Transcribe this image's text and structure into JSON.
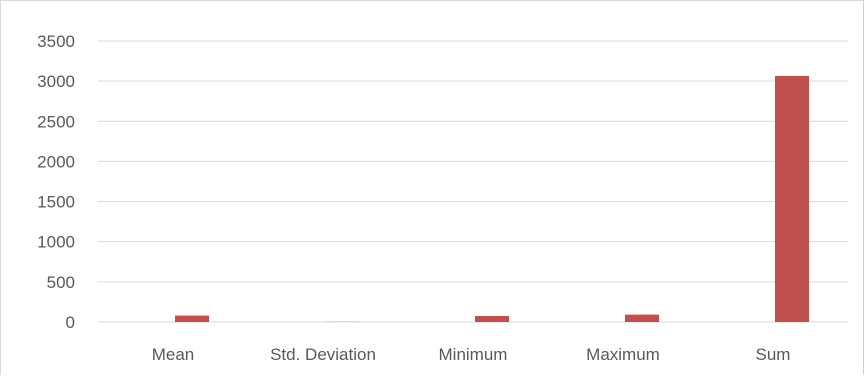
{
  "chart_data": {
    "type": "bar",
    "categories": [
      "Mean",
      "Std. Deviation",
      "Minimum",
      "Maximum",
      "Sum"
    ],
    "series": [
      {
        "values": [
          80,
          2,
          75,
          92,
          3065
        ],
        "color": "#c0504d"
      }
    ],
    "y_ticks": [
      "0",
      "500",
      "1000",
      "1500",
      "2000",
      "2500",
      "3000",
      "3500"
    ],
    "ylim": [
      0,
      3500
    ],
    "grid": true,
    "legend": "none"
  }
}
